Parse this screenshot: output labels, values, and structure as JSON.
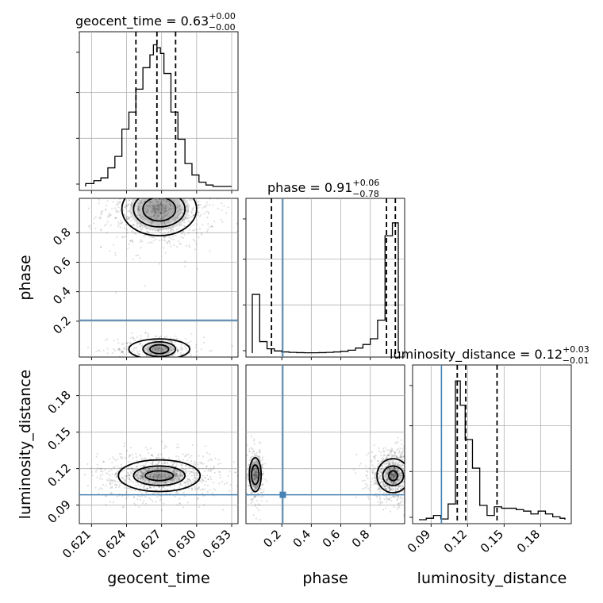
{
  "chart_data": {
    "type": "corner",
    "parameters": [
      {
        "name": "geocent_time",
        "label": "geocent_time",
        "title_name": "geocent_time",
        "title_value": "0.63",
        "title_plus": "+0.00",
        "title_minus": "−0.00",
        "range": [
          0.6205,
          0.633
        ],
        "ticks": [
          0.621,
          0.624,
          0.627,
          0.63,
          0.633
        ],
        "tick_labels": [
          "0.621",
          "0.624",
          "0.627",
          "0.630",
          "0.633"
        ],
        "quantiles": [
          0.6248,
          0.6266,
          0.6282
        ],
        "truth": null,
        "hist_edges": [
          0.6205,
          0.6212,
          0.6218,
          0.6224,
          0.623,
          0.6236,
          0.6242,
          0.6248,
          0.6254,
          0.626,
          0.6263,
          0.6266,
          0.6269,
          0.6272,
          0.6278,
          0.6284,
          0.629,
          0.6296,
          0.6302,
          0.6308,
          0.6314,
          0.633
        ],
        "hist_counts": [
          0.02,
          0.04,
          0.06,
          0.13,
          0.21,
          0.4,
          0.52,
          0.68,
          0.83,
          0.92,
          0.99,
          0.97,
          0.93,
          0.79,
          0.52,
          0.33,
          0.16,
          0.08,
          0.03,
          0.01,
          0.0
        ]
      },
      {
        "name": "phase",
        "label": "phase",
        "title_name": "phase",
        "title_value": "0.91",
        "title_plus": "+0.06",
        "title_minus": "−0.78",
        "range": [
          0.0,
          0.99
        ],
        "ticks": [
          0.2,
          0.4,
          0.6,
          0.8
        ],
        "tick_labels": [
          "0.2",
          "0.4",
          "0.6",
          "0.8"
        ],
        "quantiles": [
          0.13,
          0.91,
          0.97
        ],
        "truth": 0.207,
        "hist_edges": [
          0.0,
          0.05,
          0.1,
          0.15,
          0.2,
          0.25,
          0.3,
          0.35,
          0.4,
          0.45,
          0.5,
          0.55,
          0.6,
          0.65,
          0.7,
          0.75,
          0.8,
          0.85,
          0.9,
          0.95,
          0.99
        ],
        "hist_counts": [
          0.41,
          0.08,
          0.03,
          0.015,
          0.008,
          0.005,
          0.003,
          0.002,
          0.002,
          0.003,
          0.005,
          0.008,
          0.012,
          0.02,
          0.035,
          0.06,
          0.1,
          0.23,
          0.82,
          0.91
        ]
      },
      {
        "name": "luminosity_distance",
        "label": "luminosity_distance",
        "title_name": "luminosity_distance",
        "title_value": "0.12",
        "title_plus": "+0.03",
        "title_minus": "−0.01",
        "range": [
          0.08,
          0.2
        ],
        "ticks": [
          0.09,
          0.12,
          0.15,
          0.18
        ],
        "tick_labels": [
          "0.09",
          "0.12",
          "0.15",
          "0.18"
        ],
        "quantiles": [
          0.1115,
          0.1185,
          0.1442
        ],
        "truth": 0.0985,
        "hist_edges": [
          0.08,
          0.086,
          0.092,
          0.098,
          0.104,
          0.11,
          0.114,
          0.118,
          0.124,
          0.13,
          0.136,
          0.142,
          0.148,
          0.154,
          0.16,
          0.166,
          0.172,
          0.178,
          0.184,
          0.19,
          0.196,
          0.2
        ],
        "hist_counts": [
          0.0,
          0.01,
          0.03,
          0.005,
          0.11,
          0.97,
          0.8,
          0.56,
          0.36,
          0.1,
          0.03,
          0.09,
          0.08,
          0.08,
          0.07,
          0.06,
          0.04,
          0.06,
          0.04,
          0.02,
          0.01
        ]
      }
    ],
    "pairs": [
      {
        "x": "geocent_time",
        "y": "phase",
        "modes": [
          {
            "cx": 0.6268,
            "cy": 0.96,
            "levels": [
              [
                0.0014,
                0.08
              ],
              [
                0.0022,
                0.12
              ],
              [
                0.0032,
                0.18
              ]
            ]
          },
          {
            "cx": 0.6268,
            "cy": 0.01,
            "levels": [
              [
                0.0008,
                0.03
              ],
              [
                0.0014,
                0.05
              ],
              [
                0.0026,
                0.07
              ]
            ]
          }
        ]
      },
      {
        "x": "geocent_time",
        "y": "luminosity_distance",
        "modes": [
          {
            "cx": 0.6268,
            "cy": 0.1142,
            "levels": [
              [
                0.0012,
                0.004
              ],
              [
                0.0022,
                0.008
              ],
              [
                0.0035,
                0.013
              ]
            ]
          }
        ]
      },
      {
        "x": "phase",
        "y": "luminosity_distance",
        "modes": [
          {
            "cx": 0.955,
            "cy": 0.1142,
            "levels": [
              [
                0.03,
                0.004
              ],
              [
                0.07,
                0.008
              ],
              [
                0.11,
                0.014
              ]
            ]
          },
          {
            "cx": 0.02,
            "cy": 0.115,
            "levels": [
              [
                0.025,
                0.008
              ],
              [
                0.04,
                0.014
              ]
            ]
          }
        ]
      }
    ]
  }
}
